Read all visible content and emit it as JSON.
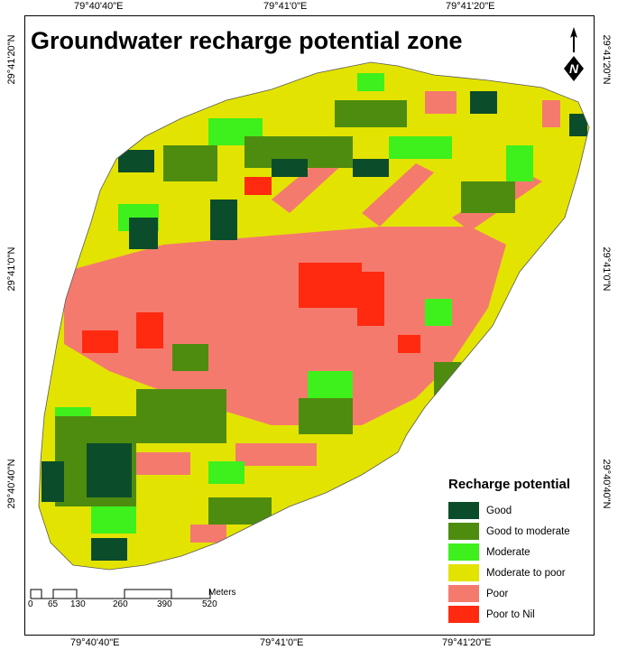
{
  "title": "Groundwater recharge potential zone",
  "top_ticks": [
    "79°40'40\"E",
    "79°41'0\"E",
    "79°41'20\"E"
  ],
  "bottom_ticks": [
    "79°40'40\"E",
    "79°41'0\"E",
    "79°41'20\"E"
  ],
  "left_ticks": [
    "29°41'20\"N",
    "29°41'0\"N",
    "29°40'40\"N"
  ],
  "right_ticks": [
    "29°41'20\"N",
    "29°41'0\"N",
    "29°40'40\"N"
  ],
  "north_arrow": {
    "letter": "N",
    "icon": "north-arrow-icon"
  },
  "legend": {
    "title": "Recharge potential",
    "items": [
      {
        "label": "Good",
        "color": "#0b4d2a"
      },
      {
        "label": "Good to moderate",
        "color": "#4e8c10"
      },
      {
        "label": "Moderate",
        "color": "#3ef01c"
      },
      {
        "label": "Moderate to poor",
        "color": "#e3e300"
      },
      {
        "label": "Poor",
        "color": "#f57a6e"
      },
      {
        "label": "Poor to Nil",
        "color": "#ff2a10"
      }
    ]
  },
  "scale": {
    "unit": "Meters",
    "ticks": [
      "0",
      "65",
      "130",
      "260",
      "390",
      "520"
    ]
  }
}
